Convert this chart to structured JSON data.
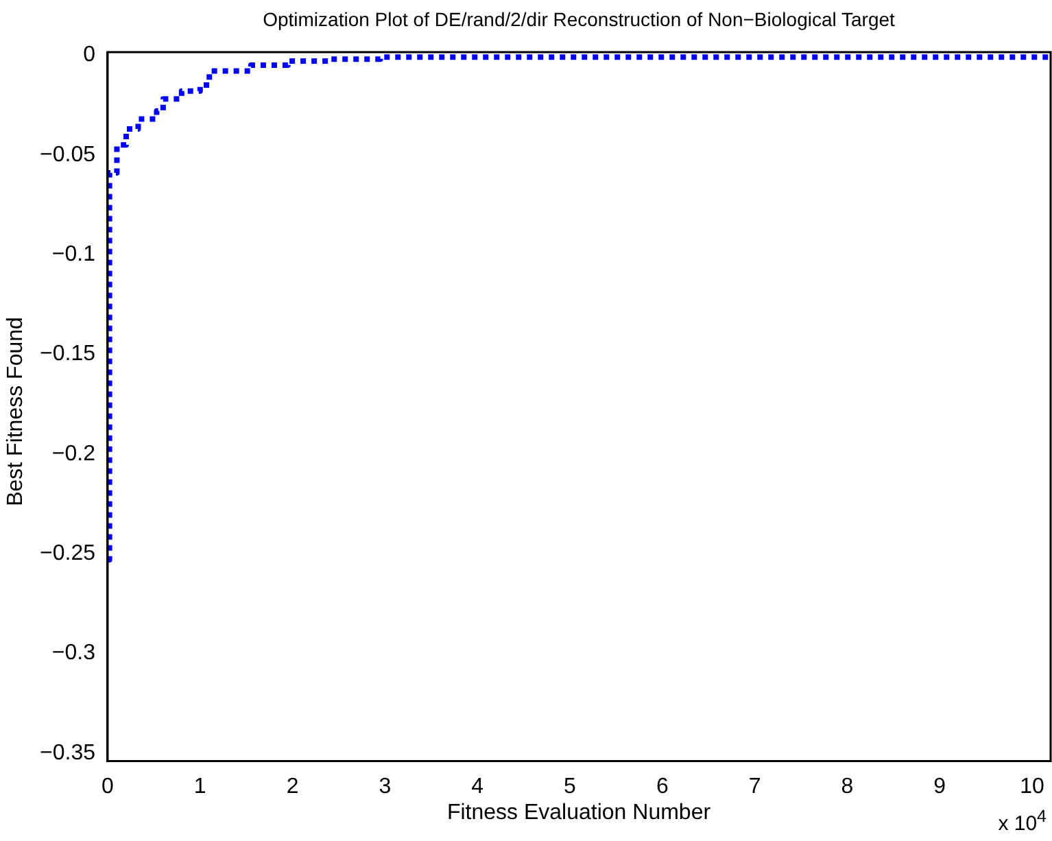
{
  "chart_data": {
    "type": "step",
    "title": "Optimization Plot of DE/rand/2/dir Reconstruction of Non−Biological Target",
    "xlabel": "Fitness Evaluation Number",
    "ylabel": "Best Fitness Found",
    "x": [
      0,
      0.02,
      0.1,
      0.2,
      0.33,
      0.53,
      0.6,
      0.8,
      1.0,
      1.1,
      1.55,
      1.95,
      2.4,
      2.95,
      10.2
    ],
    "series": [
      {
        "color": "#0000ff",
        "line_style": "dotted",
        "values": [
          -0.253,
          -0.059,
          -0.045,
          -0.037,
          -0.032,
          -0.028,
          -0.022,
          -0.018,
          -0.015,
          -0.008,
          -0.005,
          -0.003,
          -0.002,
          -0.001,
          -0.001
        ]
      }
    ],
    "xlim": [
      0,
      10.2
    ],
    "xticks": [
      0,
      1,
      2,
      3,
      4,
      5,
      6,
      7,
      8,
      9,
      10
    ],
    "ylim": [
      -0.354,
      0.0015
    ],
    "yticks": [
      -0.35,
      -0.3,
      -0.25,
      -0.2,
      -0.15,
      -0.1,
      -0.05,
      0
    ],
    "annotations": [
      "x 10$^{4}$"
    ],
    "grid": false,
    "legend": false,
    "marker": "none"
  }
}
